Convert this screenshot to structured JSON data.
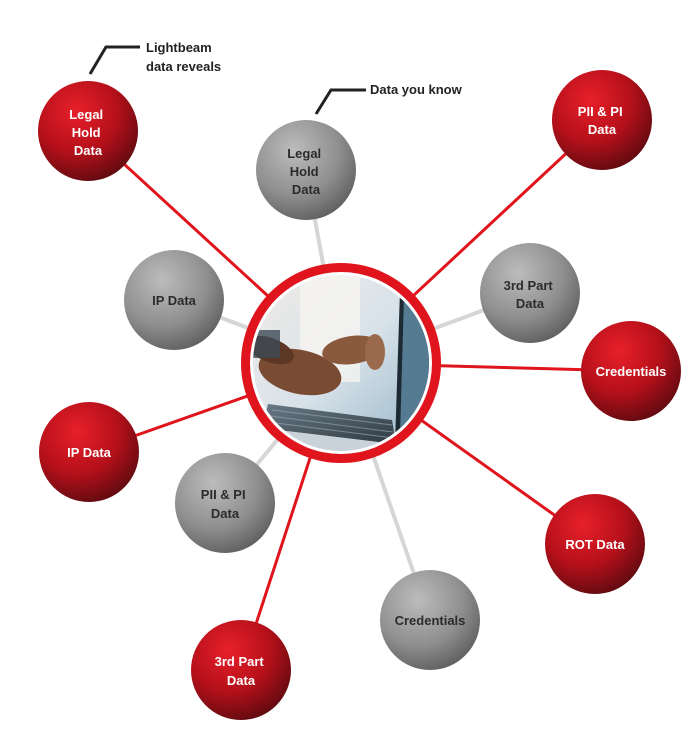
{
  "callouts": {
    "lightbeam": [
      "Lightbeam",
      "data reveals"
    ],
    "known": [
      "Data you know"
    ]
  },
  "center": {
    "image": "laptop-typing-photo"
  },
  "red_nodes": [
    {
      "id": "legal-hold",
      "lines": [
        "Legal",
        "Hold",
        "Data"
      ]
    },
    {
      "id": "pii-pi",
      "lines": [
        "PII & PI",
        "Data"
      ]
    },
    {
      "id": "credentials",
      "lines": [
        "Credentials"
      ]
    },
    {
      "id": "rot",
      "lines": [
        "ROT Data"
      ]
    },
    {
      "id": "3rd-party",
      "lines": [
        "3rd Part",
        "Data"
      ]
    },
    {
      "id": "ip",
      "lines": [
        "IP Data"
      ]
    }
  ],
  "gray_nodes": [
    {
      "id": "legal-hold",
      "lines": [
        "Legal",
        "Hold",
        "Data"
      ]
    },
    {
      "id": "3rd-party",
      "lines": [
        "3rd Part",
        "Data"
      ]
    },
    {
      "id": "credentials",
      "lines": [
        "Credentials"
      ]
    },
    {
      "id": "pii-pi",
      "lines": [
        "PII & PI",
        "Data"
      ]
    },
    {
      "id": "ip",
      "lines": [
        "IP Data"
      ]
    }
  ],
  "colors": {
    "red_connector": "#e0141c",
    "gray_connector": "#d6d6d6",
    "red_text": "#ffffff",
    "gray_text": "#2b2b2b",
    "center_ring": "#e0141c"
  }
}
